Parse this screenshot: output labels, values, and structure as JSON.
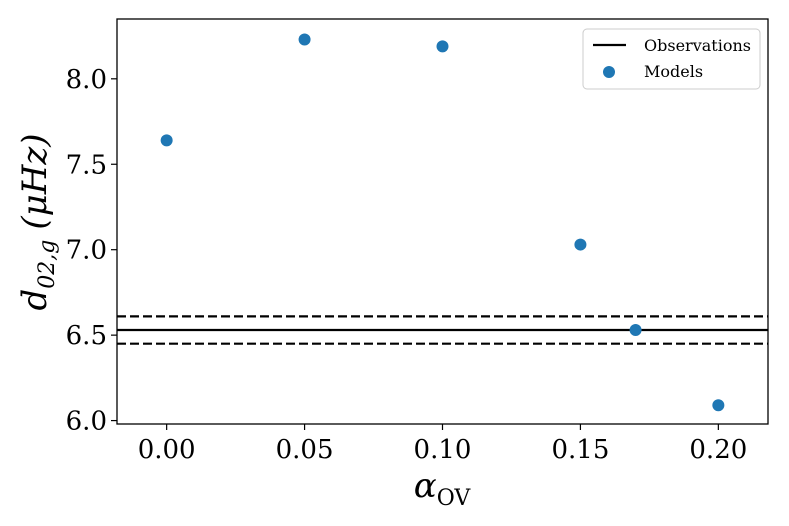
{
  "chart_data": {
    "type": "scatter",
    "xlabel": "α",
    "xlabel_sub": "OV",
    "ylabel": "d",
    "ylabel_sub": "02,g",
    "ylabel_unit": "(μHz)",
    "xlim": [
      -0.018,
      0.218
    ],
    "ylim": [
      5.98,
      8.35
    ],
    "xticks": [
      "0.00",
      "0.05",
      "0.10",
      "0.15",
      "0.20"
    ],
    "yticks": [
      "6.0",
      "6.5",
      "7.0",
      "7.5",
      "8.0"
    ],
    "xtick_values": [
      0.0,
      0.05,
      0.1,
      0.15,
      0.2
    ],
    "ytick_values": [
      6.0,
      6.5,
      7.0,
      7.5,
      8.0
    ],
    "series": [
      {
        "name": "Models",
        "color": "#1f77b4",
        "x": [
          0.0,
          0.05,
          0.1,
          0.15,
          0.17,
          0.2
        ],
        "y": [
          7.64,
          8.23,
          8.19,
          7.03,
          6.53,
          6.09
        ]
      }
    ],
    "reference_lines": [
      {
        "name": "Observations",
        "y": 6.53,
        "style": "solid",
        "color": "#000000"
      },
      {
        "y": 6.61,
        "style": "dashed",
        "color": "#000000"
      },
      {
        "y": 6.45,
        "style": "dashed",
        "color": "#000000"
      }
    ],
    "legend": {
      "position": "top-right",
      "entries": [
        {
          "label": "Observations",
          "marker": "line"
        },
        {
          "label": "Models",
          "marker": "circle"
        }
      ]
    },
    "grid": false
  }
}
